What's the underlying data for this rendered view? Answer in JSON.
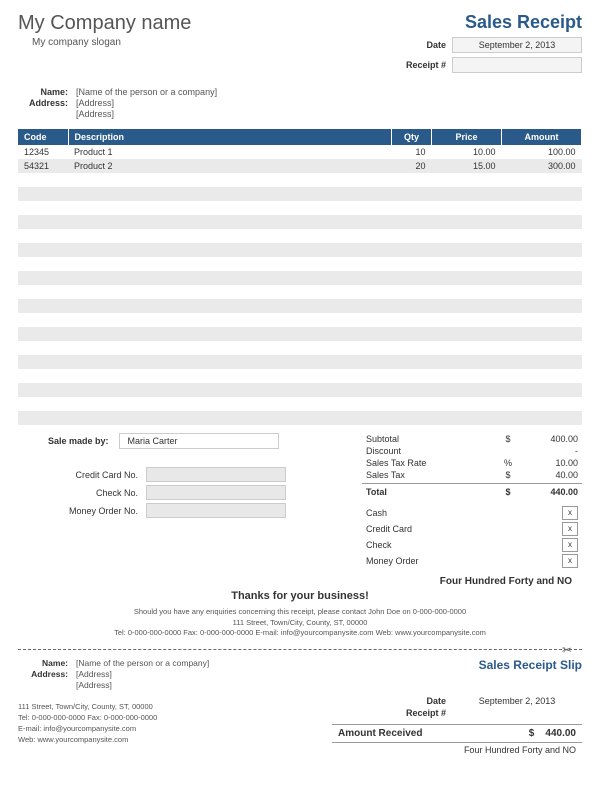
{
  "company": {
    "name": "My Company name",
    "slogan": "My company slogan"
  },
  "receipt": {
    "title": "Sales Receipt",
    "date_label": "Date",
    "date": "September 2, 2013",
    "number_label": "Receipt #",
    "number": ""
  },
  "customer": {
    "name_label": "Name:",
    "name": "[Name of the person or a company]",
    "address_label": "Address:",
    "address1": "[Address]",
    "address2": "[Address]"
  },
  "columns": {
    "code": "Code",
    "description": "Description",
    "qty": "Qty",
    "price": "Price",
    "amount": "Amount"
  },
  "items": [
    {
      "code": "12345",
      "description": "Product 1",
      "qty": "10",
      "price": "10.00",
      "amount": "100.00"
    },
    {
      "code": "54321",
      "description": "Product 2",
      "qty": "20",
      "price": "15.00",
      "amount": "300.00"
    }
  ],
  "blank_rows": 18,
  "sale_by": {
    "label": "Sale made by:",
    "value": "Maria Carter"
  },
  "payment_refs": {
    "credit_card_no": "Credit Card No.",
    "check_no": "Check No.",
    "money_order_no": "Money Order No."
  },
  "totals": {
    "subtotal_label": "Subtotal",
    "subtotal": "400.00",
    "discount_label": "Discount",
    "discount": "-",
    "tax_rate_label": "Sales Tax Rate",
    "tax_rate": "10.00",
    "tax_label": "Sales Tax",
    "tax": "40.00",
    "total_label": "Total",
    "total": "440.00",
    "currency": "$",
    "percent": "%"
  },
  "payment_methods": {
    "cash": "Cash",
    "credit_card": "Credit Card",
    "check": "Check",
    "money_order": "Money Order",
    "mark": "x"
  },
  "words": "Four Hundred Forty and NO",
  "thanks": "Thanks for your business!",
  "footer": {
    "line1": "Should you have any enquiries concerning this receipt, please contact John Doe on 0-000-000-0000",
    "line2": "111 Street, Town/City, County, ST, 00000",
    "line3": "Tel: 0-000-000-0000 Fax: 0-000-000-0000 E-mail: info@yourcompanysite.com Web: www.yourcompanysite.com"
  },
  "slip": {
    "title": "Sales Receipt Slip",
    "addr_line": "111 Street, Town/City, County, ST, 00000",
    "tel_line": "Tel: 0-000-000-0000 Fax: 0-000-000-0000",
    "email_line": "E-mail: info@yourcompanysite.com",
    "web_line": "Web: www.yourcompanysite.com",
    "amount_received_label": "Amount Received",
    "amount_received": "440.00"
  },
  "colors": {
    "header_bg": "#2a5a8a",
    "accent": "#2a5a8a",
    "stripe": "#eaeaea"
  }
}
